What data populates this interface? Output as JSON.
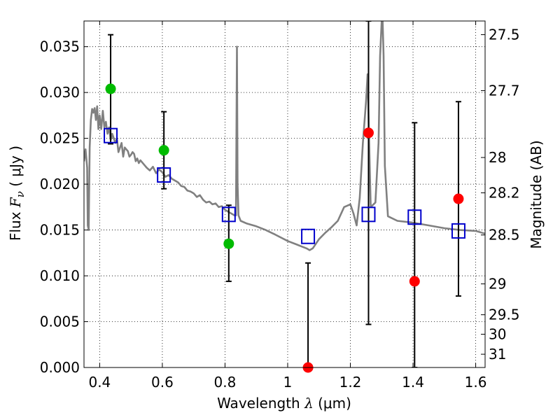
{
  "chart_data": {
    "type": "scatter",
    "xlabel": {
      "prefix": "Wavelength",
      "symbol": "λ",
      "unit": "(μm)"
    },
    "ylabel": {
      "prefix": "Flux",
      "symbol": "F",
      "subscript": "ν",
      "unit": "( μJy )"
    },
    "y2label": "Magnitude (AB)",
    "xlim": [
      0.35,
      1.63
    ],
    "ylim": [
      0.0,
      0.0378
    ],
    "x_ticks": [
      0.4,
      0.6,
      0.8,
      1.0,
      1.2,
      1.4,
      1.6
    ],
    "x_tick_labels": [
      "0.4",
      "0.6",
      "0.8",
      "1",
      "1.2",
      "1.4",
      "1.6"
    ],
    "y_ticks": [
      0.0,
      0.005,
      0.01,
      0.015,
      0.02,
      0.025,
      0.03,
      0.035
    ],
    "y_tick_labels": [
      "0.000",
      "0.005",
      "0.010",
      "0.015",
      "0.020",
      "0.025",
      "0.030",
      "0.035"
    ],
    "y2_ticks": [
      {
        "label": "27.5",
        "mag": 27.5
      },
      {
        "label": "27.7",
        "mag": 27.7
      },
      {
        "label": "28",
        "mag": 28.0
      },
      {
        "label": "28.2",
        "mag": 28.2
      },
      {
        "label": "28.5",
        "mag": 28.5
      },
      {
        "label": "29",
        "mag": 29.0
      },
      {
        "label": "29.5",
        "mag": 29.5
      },
      {
        "label": "30",
        "mag": 30.0
      },
      {
        "label": "31",
        "mag": 31.0
      }
    ],
    "grid": true,
    "colors": {
      "model_line": "#808080",
      "model_points": "#0000cc",
      "detections": "#00bb00",
      "nondetections": "#ff0000",
      "errorbars": "#000000"
    },
    "model_spectrum": {
      "x": [
        0.35,
        0.355,
        0.36,
        0.362,
        0.365,
        0.368,
        0.372,
        0.376,
        0.38,
        0.384,
        0.388,
        0.392,
        0.396,
        0.4,
        0.405,
        0.41,
        0.415,
        0.42,
        0.425,
        0.43,
        0.435,
        0.44,
        0.445,
        0.45,
        0.455,
        0.46,
        0.465,
        0.47,
        0.475,
        0.48,
        0.485,
        0.49,
        0.495,
        0.5,
        0.505,
        0.51,
        0.515,
        0.52,
        0.525,
        0.53,
        0.54,
        0.55,
        0.56,
        0.57,
        0.58,
        0.59,
        0.6,
        0.61,
        0.62,
        0.63,
        0.64,
        0.65,
        0.66,
        0.67,
        0.68,
        0.69,
        0.7,
        0.71,
        0.72,
        0.73,
        0.74,
        0.75,
        0.76,
        0.77,
        0.78,
        0.79,
        0.8,
        0.81,
        0.82,
        0.83,
        0.835,
        0.838,
        0.84,
        0.843,
        0.85,
        0.87,
        0.9,
        0.93,
        0.96,
        1.0,
        1.03,
        1.06,
        1.07,
        1.08,
        1.1,
        1.12,
        1.14,
        1.16,
        1.18,
        1.2,
        1.21,
        1.22,
        1.23,
        1.24,
        1.25,
        1.255,
        1.26,
        1.265,
        1.28,
        1.29,
        1.295,
        1.3,
        1.303,
        1.306,
        1.31,
        1.32,
        1.35,
        1.4,
        1.45,
        1.5,
        1.55,
        1.6,
        1.63
      ],
      "y": [
        0.0225,
        0.0238,
        0.0218,
        0.0155,
        0.015,
        0.024,
        0.027,
        0.0282,
        0.0278,
        0.0283,
        0.027,
        0.0285,
        0.026,
        0.0275,
        0.026,
        0.028,
        0.0262,
        0.0268,
        0.0255,
        0.0262,
        0.0248,
        0.0255,
        0.025,
        0.0245,
        0.025,
        0.0235,
        0.024,
        0.0245,
        0.023,
        0.024,
        0.0238,
        0.0236,
        0.023,
        0.0232,
        0.0235,
        0.0233,
        0.0225,
        0.0228,
        0.0223,
        0.0226,
        0.0222,
        0.0218,
        0.0215,
        0.0219,
        0.0212,
        0.0216,
        0.0213,
        0.0208,
        0.021,
        0.0206,
        0.0204,
        0.0202,
        0.0198,
        0.0197,
        0.0193,
        0.0192,
        0.019,
        0.0186,
        0.0188,
        0.0183,
        0.018,
        0.0181,
        0.0178,
        0.0179,
        0.0175,
        0.0176,
        0.0172,
        0.017,
        0.0168,
        0.0166,
        0.0166,
        0.035,
        0.02,
        0.0166,
        0.016,
        0.0157,
        0.0154,
        0.015,
        0.0145,
        0.0138,
        0.0134,
        0.013,
        0.0128,
        0.013,
        0.014,
        0.0147,
        0.0153,
        0.016,
        0.0175,
        0.0178,
        0.0168,
        0.0155,
        0.0185,
        0.0245,
        0.029,
        0.032,
        0.0245,
        0.0175,
        0.018,
        0.0245,
        0.034,
        0.0378,
        0.0378,
        0.034,
        0.022,
        0.0165,
        0.016,
        0.0158,
        0.0155,
        0.0152,
        0.015,
        0.0149,
        0.0146
      ]
    },
    "model_points": {
      "name": "model",
      "x": [
        0.435,
        0.605,
        0.812,
        1.065,
        1.258,
        1.405,
        1.545
      ],
      "y": [
        0.0253,
        0.021,
        0.0167,
        0.0143,
        0.0167,
        0.0164,
        0.0149
      ]
    },
    "detections": {
      "x": [
        0.435,
        0.605,
        0.812
      ],
      "y": [
        0.0304,
        0.0237,
        0.0135
      ]
    },
    "nondetections": {
      "x": [
        1.065,
        1.258,
        1.405,
        1.545
      ],
      "y": [
        0.0,
        0.0256,
        0.0094,
        0.0184
      ]
    },
    "errorbars": [
      {
        "x": 0.435,
        "y_low": 0.0244,
        "y_high": 0.0363
      },
      {
        "x": 0.605,
        "y_low": 0.0195,
        "y_high": 0.0279
      },
      {
        "x": 0.812,
        "y_low": 0.0094,
        "y_high": 0.0177
      },
      {
        "x": 1.065,
        "y_low": 0.0,
        "y_high": 0.0114
      },
      {
        "x": 1.258,
        "y_low": 0.0047,
        "y_high": 0.0378
      },
      {
        "x": 1.405,
        "y_low": 0.0,
        "y_high": 0.0267
      },
      {
        "x": 1.545,
        "y_low": 0.0078,
        "y_high": 0.029
      }
    ]
  }
}
